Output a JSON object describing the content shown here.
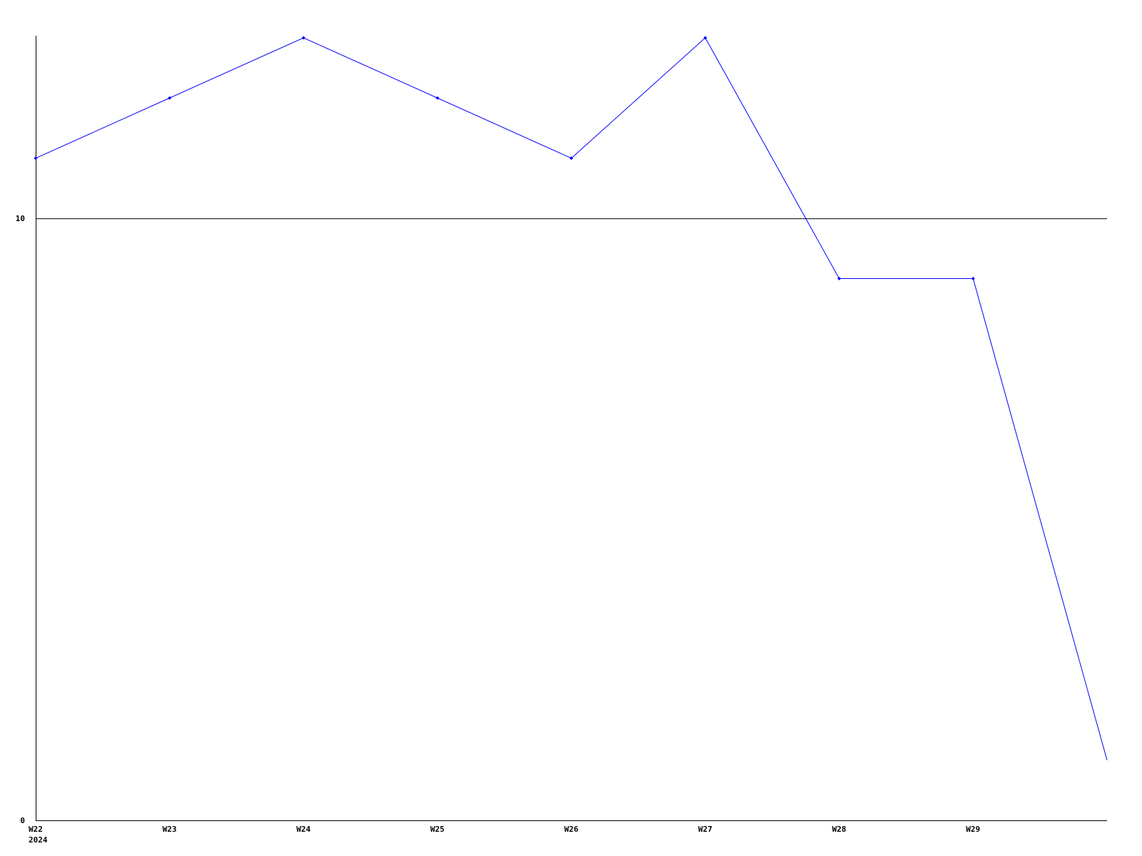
{
  "chart_data": {
    "type": "line",
    "title": "",
    "xlabel": "",
    "ylabel": "",
    "categories": [
      "W22",
      "W23",
      "W24",
      "W25",
      "W26",
      "W27",
      "W28",
      "W29",
      ""
    ],
    "year_label": "2024",
    "series": [
      {
        "values": [
          11,
          12,
          13,
          12,
          11,
          13,
          9,
          9,
          1
        ],
        "color": "#0000ff"
      }
    ],
    "ylim": [
      0,
      13
    ],
    "yticks": [
      0,
      10
    ],
    "grid": "horizontal line at 10",
    "legend": "none",
    "axis_color": "#000000"
  }
}
